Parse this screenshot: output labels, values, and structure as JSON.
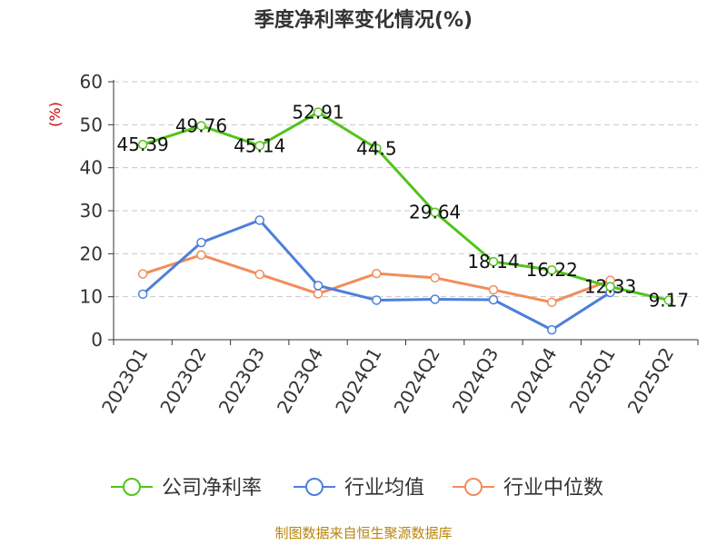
{
  "title": "季度净利率变化情况(%)",
  "source": "制图数据来自恒生聚源数据库",
  "colors": {
    "company": "#52c41a",
    "industry_avg": "#4d7fdc",
    "industry_median": "#f28c5a",
    "unit": "#cc0000",
    "grid": "#c8c8c8",
    "axis": "#333333"
  },
  "chart_data": {
    "type": "line",
    "ylabel": "(%)",
    "ylim": [
      0,
      60
    ],
    "yticks": [
      "0",
      "10",
      "20",
      "30",
      "40",
      "50",
      "60"
    ],
    "categories": [
      "2023Q1",
      "2023Q2",
      "2023Q3",
      "2023Q4",
      "2024Q1",
      "2024Q2",
      "2024Q3",
      "2024Q4",
      "2025Q1",
      "2025Q2"
    ],
    "legend_position": "bottom",
    "grid": "horizontal-dashed",
    "series": [
      {
        "name": "公司净利率",
        "color_key": "company",
        "values": [
          45.39,
          49.76,
          45.14,
          52.91,
          44.5,
          29.64,
          18.14,
          16.22,
          12.33,
          9.17
        ],
        "labels": [
          "45.39",
          "49.76",
          "45.14",
          "52.91",
          "44.5",
          "29.64",
          "18.14",
          "16.22",
          "12.33",
          "9.17"
        ]
      },
      {
        "name": "行业均值",
        "color_key": "industry_avg",
        "values": [
          10.6,
          22.6,
          27.8,
          12.6,
          9.2,
          9.4,
          9.3,
          2.3,
          11.0,
          null
        ]
      },
      {
        "name": "行业中位数",
        "color_key": "industry_median",
        "values": [
          15.3,
          19.7,
          15.2,
          10.7,
          15.4,
          14.4,
          11.6,
          8.7,
          13.8,
          null
        ]
      }
    ]
  }
}
